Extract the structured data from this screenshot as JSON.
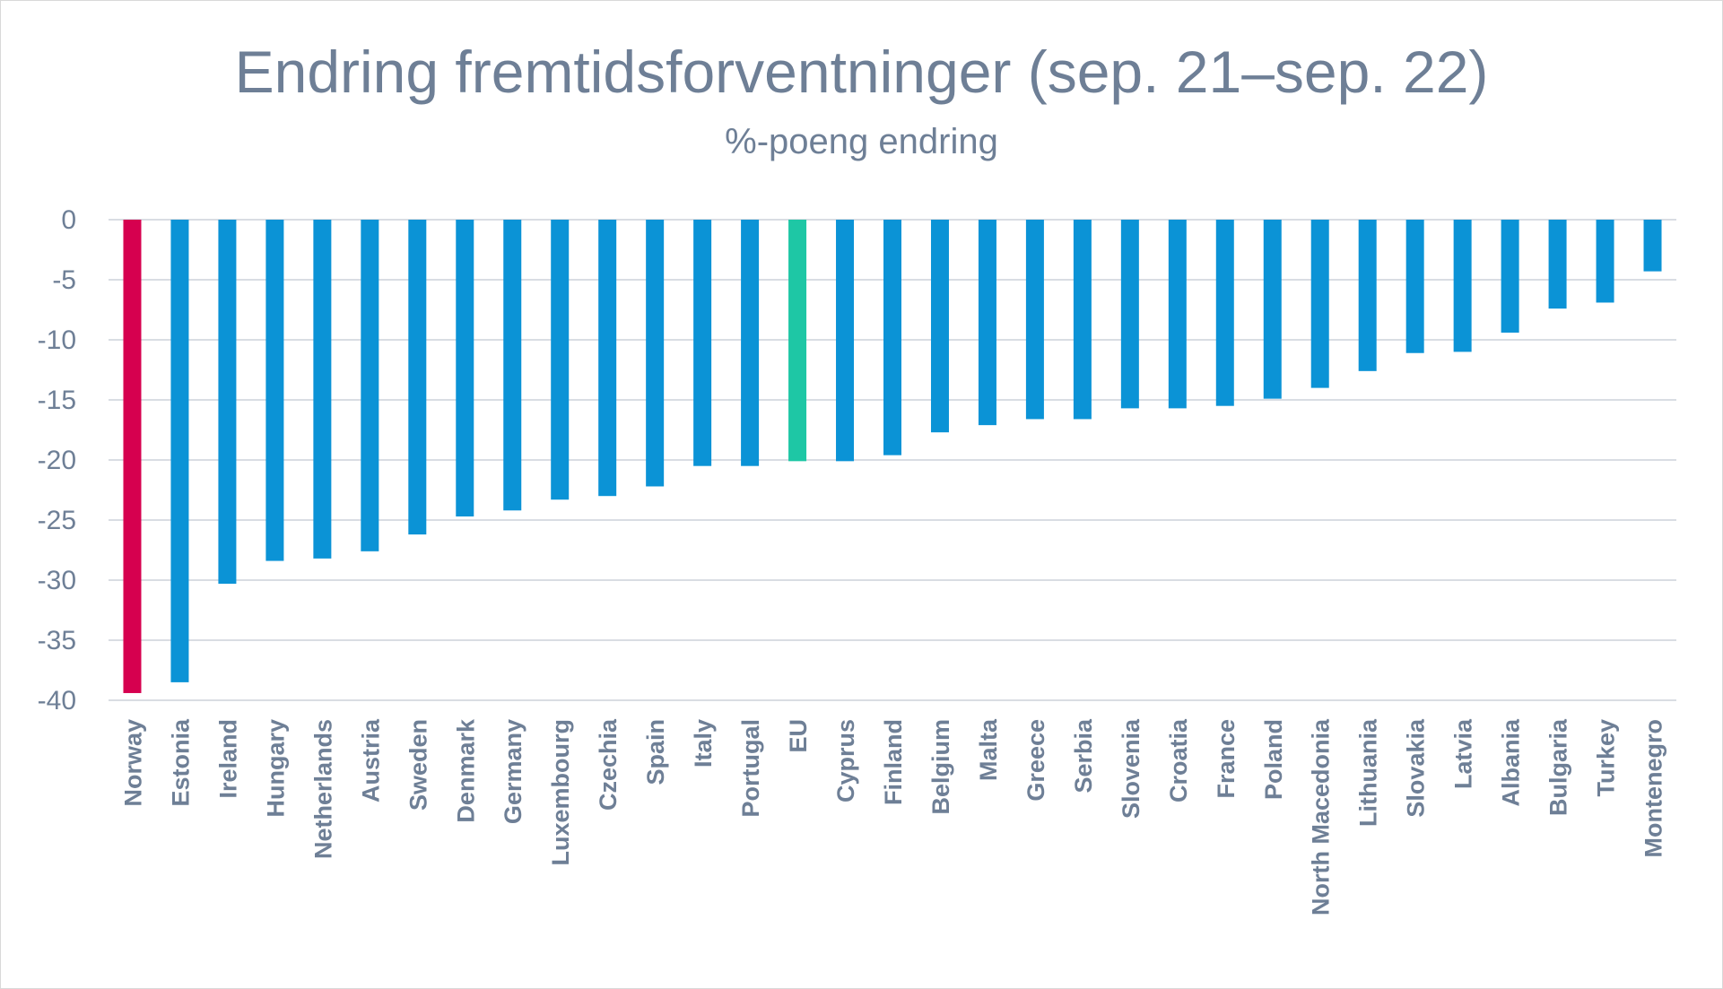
{
  "chart_data": {
    "type": "bar",
    "title": "Endring fremtidsforventninger (sep. 21–sep. 22)",
    "subtitle": "%-poeng endring",
    "xlabel": "",
    "ylabel": "",
    "ylim": [
      -40,
      0
    ],
    "yticks": [
      0,
      -5,
      -10,
      -15,
      -20,
      -25,
      -30,
      -35,
      -40
    ],
    "grid": true,
    "legend": "none",
    "colors": {
      "default": "#0b93d6",
      "highlight_norway": "#d6004f",
      "highlight_eu": "#1ec7a5",
      "grid": "#d9dde3",
      "text": "#6e7f96"
    },
    "categories": [
      "Norway",
      "Estonia",
      "Ireland",
      "Hungary",
      "Netherlands",
      "Austria",
      "Sweden",
      "Denmark",
      "Germany",
      "Luxembourg",
      "Czechia",
      "Spain",
      "Italy",
      "Portugal",
      "EU",
      "Cyprus",
      "Finland",
      "Belgium",
      "Malta",
      "Greece",
      "Serbia",
      "Slovenia",
      "Croatia",
      "France",
      "Poland",
      "North Macedonia",
      "Lithuania",
      "Slovakia",
      "Latvia",
      "Albania",
      "Bulgaria",
      "Turkey",
      "Montenegro"
    ],
    "values": [
      -39.4,
      -38.5,
      -30.3,
      -28.4,
      -28.2,
      -27.6,
      -26.2,
      -24.7,
      -24.2,
      -23.3,
      -23.0,
      -22.2,
      -20.5,
      -20.5,
      -20.1,
      -20.1,
      -19.6,
      -17.7,
      -17.1,
      -16.6,
      -16.6,
      -15.7,
      -15.7,
      -15.5,
      -14.9,
      -14.0,
      -12.6,
      -11.1,
      -11.0,
      -9.4,
      -7.4,
      -6.9,
      -4.3
    ],
    "bar_colors": [
      "highlight_norway",
      "default",
      "default",
      "default",
      "default",
      "default",
      "default",
      "default",
      "default",
      "default",
      "default",
      "default",
      "default",
      "default",
      "highlight_eu",
      "default",
      "default",
      "default",
      "default",
      "default",
      "default",
      "default",
      "default",
      "default",
      "default",
      "default",
      "default",
      "default",
      "default",
      "default",
      "default",
      "default",
      "default"
    ]
  }
}
